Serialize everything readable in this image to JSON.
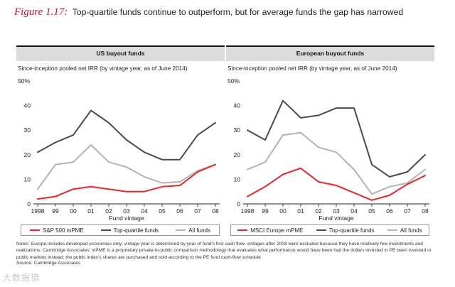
{
  "figure": {
    "label": "Figure 1.17:",
    "title": "Top-quartile funds continue to outperform, but for average funds the gap has narrowed"
  },
  "colors": {
    "mpme": "#e8262b",
    "top_quartile": "#4a4a4a",
    "all_funds": "#b3b3b3"
  },
  "y_label_top": "50%",
  "notes": "Notes: Europe includes developed economies only; vintage year is determined by year of fund's first cash flow; vintages after 2008 were excluded because they have relatively few investments and realizations; Cambridge Associates' mPME is a proprietary private-to-public comparison methodology that evaluates what performance would have been had the dollars invested in PE been invested in public markets instead; the public index's shares are purchased and sold according to the PE fund cash-flow schedule",
  "source": "Source: Cambridge Associates",
  "watermark": "大数据猎",
  "chart_data": [
    {
      "type": "line",
      "title": "US buyout funds",
      "subtitle": "Since-inception pooled net IRR (by vintage year, as of June 2014)",
      "xlabel": "Fund vintage",
      "ylabel": "",
      "categories": [
        "1998",
        "99",
        "00",
        "01",
        "02",
        "03",
        "04",
        "05",
        "06",
        "07",
        "08"
      ],
      "yticks": [
        "0",
        "10",
        "20",
        "30",
        "40"
      ],
      "ylim": [
        0,
        50
      ],
      "series": [
        {
          "name": "S&P 500 mPME",
          "values": [
            2,
            3,
            6,
            7,
            6,
            5,
            5,
            7,
            7.5,
            13,
            16
          ]
        },
        {
          "name": "Top-quartile funds",
          "values": [
            21,
            25,
            28,
            38,
            33,
            26,
            21,
            18,
            18,
            28,
            33
          ]
        },
        {
          "name": "All funds",
          "values": [
            6,
            16,
            17,
            24,
            17,
            15,
            11,
            8.5,
            9,
            13.5,
            16
          ]
        }
      ]
    },
    {
      "type": "line",
      "title": "European buyout funds",
      "subtitle": "Since-inception pooled net IRR (by vintage year, as of June 2014)",
      "xlabel": "Fund vintage",
      "ylabel": "",
      "categories": [
        "1998",
        "99",
        "00",
        "01",
        "02",
        "03",
        "04",
        "05",
        "06",
        "07",
        "08"
      ],
      "yticks": [
        "0",
        "10",
        "20",
        "30",
        "40"
      ],
      "ylim": [
        0,
        50
      ],
      "series": [
        {
          "name": "MSCI Europe mPME",
          "values": [
            3,
            7,
            12,
            14.5,
            9,
            7.5,
            4.5,
            1.5,
            3.5,
            8,
            11.5
          ]
        },
        {
          "name": "Top-quartile funds",
          "values": [
            30,
            26,
            42,
            35,
            36,
            39,
            39,
            16,
            11,
            13,
            20
          ]
        },
        {
          "name": "All funds",
          "values": [
            14,
            17,
            28,
            29,
            23,
            21,
            14,
            4,
            7,
            8.5,
            14
          ]
        }
      ]
    }
  ]
}
